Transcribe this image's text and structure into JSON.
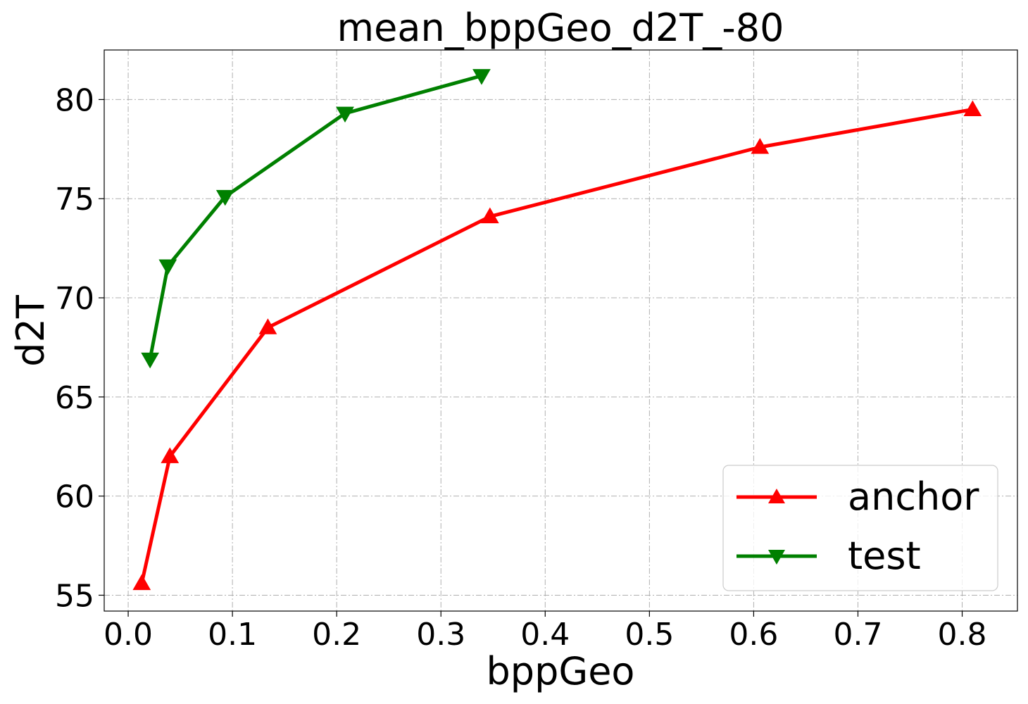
{
  "chart_data": {
    "type": "line",
    "title": "mean_bppGeo_d2T_-80",
    "xlabel": "bppGeo",
    "ylabel": "d2T",
    "xlim": [
      -0.023,
      0.853
    ],
    "ylim": [
      54.2,
      82.5
    ],
    "xticks": [
      0.0,
      0.1,
      0.2,
      0.3,
      0.4,
      0.5,
      0.6,
      0.7,
      0.8
    ],
    "xtick_labels": [
      "0.0",
      "0.1",
      "0.2",
      "0.3",
      "0.4",
      "0.5",
      "0.6",
      "0.7",
      "0.8"
    ],
    "yticks": [
      55,
      60,
      65,
      70,
      75,
      80
    ],
    "ytick_labels": [
      "55",
      "60",
      "65",
      "70",
      "75",
      "80"
    ],
    "grid": true,
    "legend_position": "bottom-right",
    "series": [
      {
        "name": "anchor",
        "color": "#ff0000",
        "marker": "triangle-up",
        "x": [
          0.013,
          0.04,
          0.134,
          0.347,
          0.606,
          0.81
        ],
        "y": [
          55.6,
          62.0,
          68.5,
          74.1,
          77.6,
          79.5
        ]
      },
      {
        "name": "test",
        "color": "#008000",
        "marker": "triangle-down",
        "x": [
          0.021,
          0.038,
          0.093,
          0.208,
          0.339
        ],
        "y": [
          66.9,
          71.6,
          75.1,
          79.3,
          81.2
        ]
      }
    ]
  }
}
